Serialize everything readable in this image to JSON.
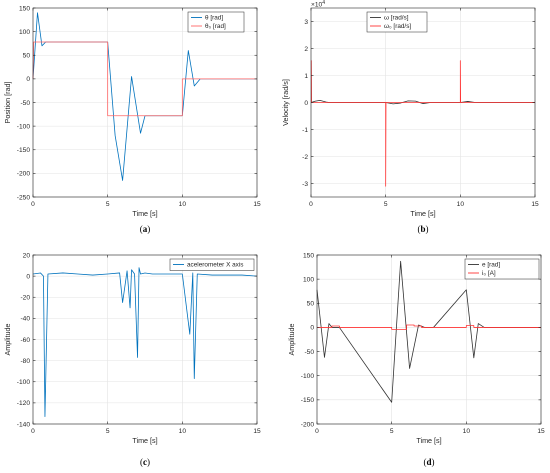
{
  "chart_data": [
    {
      "type": "line",
      "caption": "(a)",
      "xlabel": "Time [s]",
      "ylabel": "Position [rad]",
      "xlim": [
        0,
        15
      ],
      "ylim": [
        -250,
        150
      ],
      "xticks": [
        0,
        5,
        10,
        15
      ],
      "yticks": [
        -250,
        -200,
        -150,
        -100,
        -50,
        0,
        50,
        100,
        150
      ],
      "grid": true,
      "legend_position": "top-right",
      "series": [
        {
          "name": "θ [rad]",
          "color": "#0072bd",
          "x": [
            0,
            0.3,
            0.6,
            0.85,
            1.1,
            5.0,
            5.5,
            6.0,
            6.6,
            7.2,
            7.5,
            7.8,
            10.0,
            10.4,
            10.8,
            11.2,
            11.5,
            15.0
          ],
          "y": [
            0,
            140,
            70,
            78,
            78,
            78,
            -120,
            -215,
            5,
            -115,
            -78,
            -78,
            -78,
            60,
            -15,
            0,
            0,
            0
          ]
        },
        {
          "name": "θ₀ [rad]",
          "color": "#ff6666",
          "x": [
            0,
            0.05,
            5.0,
            5.0,
            10.0,
            10.0,
            15.0
          ],
          "y": [
            0,
            78,
            78,
            -78,
            -78,
            0,
            0
          ]
        }
      ]
    },
    {
      "type": "line",
      "caption": "(b)",
      "xlabel": "Time [s]",
      "ylabel": "Velocity [rad/s]",
      "exponent_label": "×10",
      "exponent_power": "4",
      "xlim": [
        0,
        15
      ],
      "ylim": [
        -3.5,
        3.5
      ],
      "xticks": [
        0,
        5,
        10,
        15
      ],
      "yticks": [
        -3,
        -2,
        -1,
        0,
        1,
        2,
        3
      ],
      "grid": true,
      "legend_position": "top-right",
      "series": [
        {
          "name": "ω [rad/s]",
          "color": "#333333",
          "x": [
            0,
            0.3,
            0.6,
            1.0,
            1.2,
            5.0,
            5.5,
            6.0,
            6.5,
            7.0,
            7.5,
            8.0,
            10.0,
            10.5,
            11.0,
            15.0
          ],
          "y": [
            0,
            0.05,
            0.08,
            0.02,
            0,
            0,
            -0.05,
            -0.02,
            0.06,
            0.05,
            -0.04,
            0,
            0,
            0.04,
            0,
            0
          ]
        },
        {
          "name": "ω₀ [rad/s]",
          "color": "#ff3333",
          "x": [
            0,
            0.02,
            0.04,
            5.0,
            5.0,
            5.02,
            10.0,
            10.0,
            10.02,
            15.0
          ],
          "y": [
            1.55,
            1.55,
            0,
            0,
            -3.1,
            0,
            0,
            1.55,
            0,
            0
          ]
        }
      ]
    },
    {
      "type": "line",
      "caption": "(c)",
      "xlabel": "Time [s]",
      "ylabel": "Amplitude",
      "xlim": [
        0,
        15
      ],
      "ylim": [
        -140,
        20
      ],
      "xticks": [
        0,
        5,
        10,
        15
      ],
      "yticks": [
        -140,
        -120,
        -100,
        -80,
        -60,
        -40,
        -20,
        0,
        20
      ],
      "grid": true,
      "legend_position": "top-right",
      "series": [
        {
          "name": "acelerometer X axis",
          "color": "#0072bd",
          "x": [
            0,
            0.5,
            0.7,
            0.8,
            1.0,
            2.0,
            3.0,
            4.0,
            5.0,
            5.8,
            6.0,
            6.3,
            6.5,
            6.6,
            6.8,
            7.0,
            7.1,
            7.2,
            7.5,
            8.0,
            9.0,
            10.0,
            10.5,
            10.7,
            10.8,
            11.0,
            12.0,
            13.0,
            14.0,
            15.0
          ],
          "y": [
            2,
            3,
            0,
            -133,
            2,
            3,
            2,
            1,
            2,
            3,
            -25,
            5,
            -30,
            6,
            2,
            -77,
            8,
            2,
            3,
            2,
            2,
            2,
            -55,
            3,
            -97,
            2,
            1,
            1,
            1,
            0
          ]
        }
      ]
    },
    {
      "type": "line",
      "caption": "(d)",
      "xlabel": "Time [s]",
      "ylabel": "Amplitude",
      "xlim": [
        0,
        15
      ],
      "ylim": [
        -200,
        150
      ],
      "xticks": [
        0,
        5,
        10,
        15
      ],
      "yticks": [
        -200,
        -150,
        -100,
        -50,
        0,
        50,
        100,
        150
      ],
      "grid": true,
      "legend_position": "top-right",
      "series": [
        {
          "name": "e [rad]",
          "color": "#333333",
          "x": [
            0,
            0.5,
            0.8,
            1.0,
            1.5,
            5.0,
            5.6,
            6.2,
            6.8,
            7.2,
            7.8,
            10.0,
            10.5,
            10.8,
            11.2,
            15.0
          ],
          "y": [
            78,
            -62,
            8,
            0,
            0,
            -155,
            137,
            -85,
            5,
            0,
            0,
            78,
            -63,
            8,
            0,
            0
          ]
        },
        {
          "name": "i₀ [A]",
          "color": "#ff3333",
          "x": [
            0,
            1.0,
            1.0,
            1.5,
            1.5,
            5.0,
            5.0,
            6.0,
            6.0,
            6.5,
            6.5,
            7.0,
            7.0,
            10.0,
            10.0,
            10.5,
            10.5,
            15.0
          ],
          "y": [
            0,
            0,
            3,
            3,
            0,
            0,
            -4,
            -4,
            5,
            5,
            3,
            3,
            0,
            0,
            4,
            4,
            0,
            0
          ]
        }
      ]
    }
  ]
}
